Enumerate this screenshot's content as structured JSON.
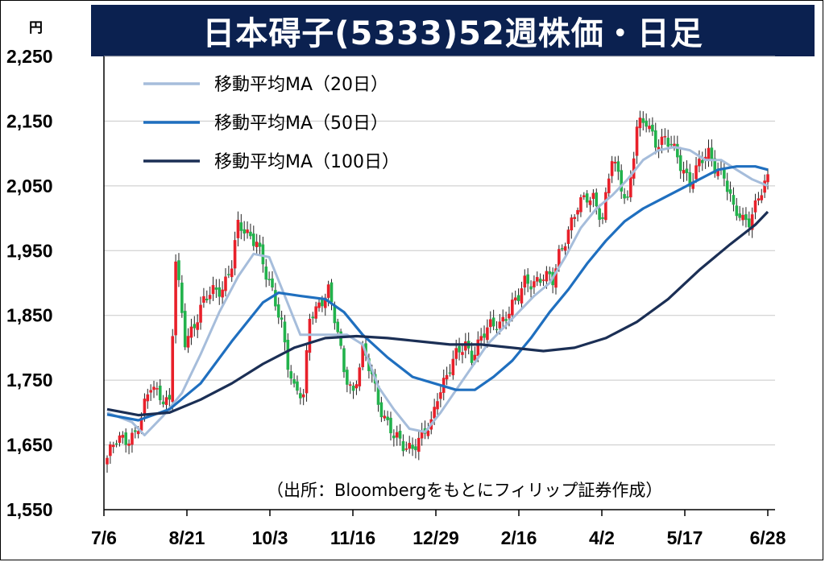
{
  "title": "日本碍子(5333)52週株価・日足",
  "unit": "円",
  "source": "（出所：Bloombergをもとにフィリップ証券作成）",
  "colors": {
    "up": "#e8202a",
    "down": "#22b24c",
    "ma20": "#a6bddb",
    "ma50": "#1f6fbf",
    "ma100": "#1b2f55",
    "title_bg": "#0b2150",
    "grid": "#c8c8c8"
  },
  "chart_data": {
    "type": "candlestick",
    "title": "日本碍子(5333)52週株価・日足",
    "ylabel": "円",
    "ylim": [
      1550,
      2250
    ],
    "yticks": [
      2250,
      2150,
      2050,
      1950,
      1850,
      1750,
      1650,
      1550
    ],
    "ytick_labels": [
      "2,250",
      "2,150",
      "2,050",
      "1,950",
      "1,850",
      "1,750",
      "1,650",
      "1,550"
    ],
    "xtick_labels": [
      "7/6",
      "8/21",
      "10/3",
      "11/16",
      "12/29",
      "2/16",
      "4/2",
      "5/17",
      "6/28"
    ],
    "grid": "horizontal",
    "legend_position": "top-left",
    "legend": [
      "移動平均MA（20日）",
      "移動平均MA（50日）",
      "移動平均MA（100日）"
    ],
    "close_anchors": [
      [
        0,
        1630
      ],
      [
        3,
        1655
      ],
      [
        6,
        1660
      ],
      [
        9,
        1670
      ],
      [
        11,
        1690
      ],
      [
        14,
        1740
      ],
      [
        17,
        1730
      ],
      [
        20,
        1715
      ],
      [
        22,
        1930
      ],
      [
        25,
        1810
      ],
      [
        28,
        1840
      ],
      [
        31,
        1870
      ],
      [
        34,
        1885
      ],
      [
        37,
        1895
      ],
      [
        40,
        1930
      ],
      [
        42,
        1985
      ],
      [
        45,
        1975
      ],
      [
        48,
        1970
      ],
      [
        51,
        1910
      ],
      [
        53,
        1880
      ],
      [
        56,
        1840
      ],
      [
        58,
        1780
      ],
      [
        60,
        1735
      ],
      [
        63,
        1720
      ],
      [
        65,
        1850
      ],
      [
        68,
        1870
      ],
      [
        71,
        1885
      ],
      [
        74,
        1820
      ],
      [
        76,
        1770
      ],
      [
        79,
        1730
      ],
      [
        82,
        1790
      ],
      [
        85,
        1760
      ],
      [
        87,
        1720
      ],
      [
        90,
        1680
      ],
      [
        92,
        1660
      ],
      [
        95,
        1650
      ],
      [
        98,
        1650
      ],
      [
        101,
        1660
      ],
      [
        104,
        1680
      ],
      [
        106,
        1730
      ],
      [
        109,
        1760
      ],
      [
        112,
        1785
      ],
      [
        115,
        1805
      ],
      [
        117,
        1790
      ],
      [
        120,
        1815
      ],
      [
        123,
        1830
      ],
      [
        126,
        1840
      ],
      [
        129,
        1860
      ],
      [
        132,
        1875
      ],
      [
        134,
        1900
      ],
      [
        137,
        1905
      ],
      [
        140,
        1910
      ],
      [
        143,
        1900
      ],
      [
        145,
        1945
      ],
      [
        148,
        1985
      ],
      [
        151,
        2015
      ],
      [
        154,
        2030
      ],
      [
        156,
        2035
      ],
      [
        159,
        2000
      ],
      [
        162,
        2090
      ],
      [
        165,
        2050
      ],
      [
        167,
        2030
      ],
      [
        170,
        2140
      ],
      [
        173,
        2145
      ],
      [
        176,
        2120
      ],
      [
        179,
        2125
      ],
      [
        181,
        2110
      ],
      [
        184,
        2080
      ],
      [
        187,
        2060
      ],
      [
        190,
        2085
      ],
      [
        193,
        2095
      ],
      [
        195,
        2080
      ],
      [
        198,
        2070
      ],
      [
        201,
        2010
      ],
      [
        204,
        1995
      ],
      [
        206,
        2000
      ],
      [
        209,
        2035
      ],
      [
        212,
        2055
      ]
    ],
    "ma20_anchors": [
      [
        0,
        1700
      ],
      [
        8,
        1685
      ],
      [
        12,
        1665
      ],
      [
        18,
        1695
      ],
      [
        24,
        1730
      ],
      [
        30,
        1790
      ],
      [
        36,
        1855
      ],
      [
        42,
        1910
      ],
      [
        47,
        1945
      ],
      [
        52,
        1940
      ],
      [
        57,
        1880
      ],
      [
        62,
        1820
      ],
      [
        67,
        1820
      ],
      [
        72,
        1820
      ],
      [
        77,
        1820
      ],
      [
        82,
        1805
      ],
      [
        87,
        1740
      ],
      [
        92,
        1705
      ],
      [
        97,
        1675
      ],
      [
        102,
        1670
      ],
      [
        107,
        1700
      ],
      [
        112,
        1735
      ],
      [
        117,
        1770
      ],
      [
        122,
        1805
      ],
      [
        127,
        1830
      ],
      [
        132,
        1855
      ],
      [
        137,
        1880
      ],
      [
        142,
        1900
      ],
      [
        147,
        1940
      ],
      [
        152,
        1985
      ],
      [
        157,
        2015
      ],
      [
        162,
        2035
      ],
      [
        167,
        2060
      ],
      [
        172,
        2090
      ],
      [
        177,
        2105
      ],
      [
        182,
        2110
      ],
      [
        187,
        2105
      ],
      [
        192,
        2090
      ],
      [
        197,
        2090
      ],
      [
        202,
        2075
      ],
      [
        207,
        2060
      ],
      [
        212,
        2050
      ]
    ],
    "ma50_anchors": [
      [
        0,
        1697
      ],
      [
        10,
        1688
      ],
      [
        20,
        1705
      ],
      [
        30,
        1745
      ],
      [
        40,
        1810
      ],
      [
        50,
        1870
      ],
      [
        55,
        1885
      ],
      [
        62,
        1880
      ],
      [
        70,
        1875
      ],
      [
        76,
        1855
      ],
      [
        82,
        1820
      ],
      [
        90,
        1785
      ],
      [
        98,
        1755
      ],
      [
        105,
        1745
      ],
      [
        112,
        1735
      ],
      [
        118,
        1735
      ],
      [
        124,
        1755
      ],
      [
        130,
        1780
      ],
      [
        136,
        1815
      ],
      [
        142,
        1855
      ],
      [
        148,
        1890
      ],
      [
        154,
        1930
      ],
      [
        160,
        1965
      ],
      [
        166,
        1995
      ],
      [
        172,
        2015
      ],
      [
        178,
        2030
      ],
      [
        184,
        2045
      ],
      [
        190,
        2060
      ],
      [
        196,
        2075
      ],
      [
        202,
        2080
      ],
      [
        208,
        2080
      ],
      [
        212,
        2075
      ]
    ],
    "ma100_anchors": [
      [
        0,
        1705
      ],
      [
        10,
        1696
      ],
      [
        20,
        1700
      ],
      [
        30,
        1720
      ],
      [
        40,
        1745
      ],
      [
        50,
        1775
      ],
      [
        60,
        1800
      ],
      [
        70,
        1815
      ],
      [
        80,
        1818
      ],
      [
        90,
        1815
      ],
      [
        100,
        1810
      ],
      [
        110,
        1805
      ],
      [
        120,
        1805
      ],
      [
        130,
        1800
      ],
      [
        140,
        1795
      ],
      [
        150,
        1800
      ],
      [
        160,
        1815
      ],
      [
        170,
        1840
      ],
      [
        180,
        1875
      ],
      [
        190,
        1920
      ],
      [
        200,
        1960
      ],
      [
        208,
        1990
      ],
      [
        212,
        2010
      ]
    ]
  }
}
